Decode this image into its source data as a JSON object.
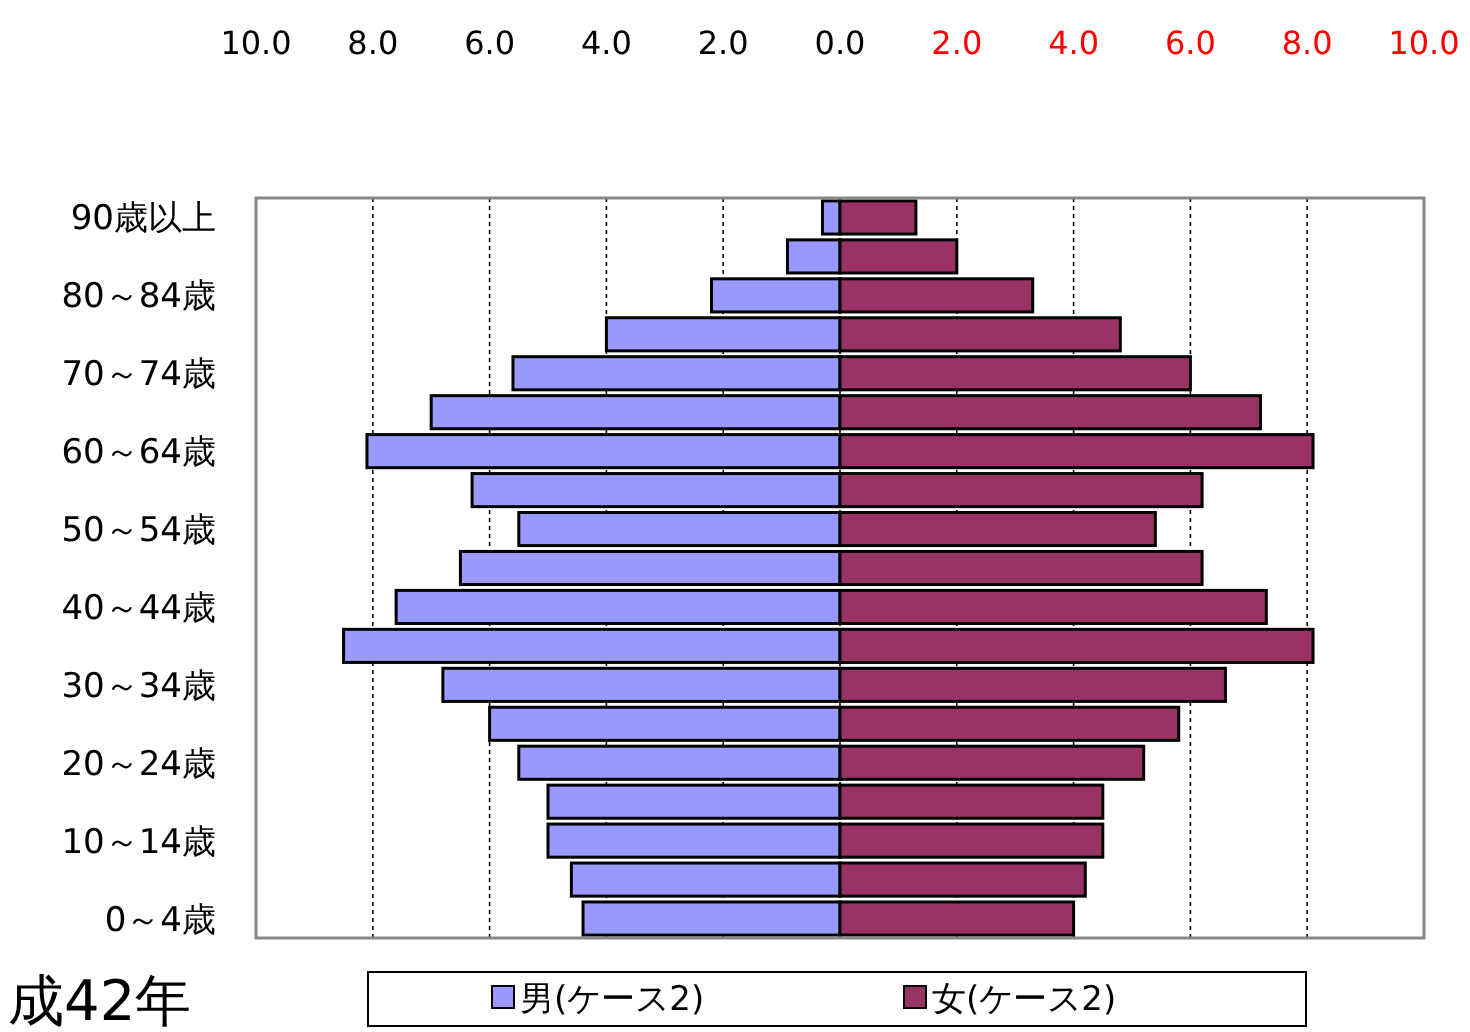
{
  "chart_data": {
    "type": "bar",
    "orientation": "horizontal",
    "categories": [
      "90歳以上",
      null,
      "80～84歳",
      null,
      "70～74歳",
      null,
      "60～64歳",
      null,
      "50～54歳",
      null,
      "40～44歳",
      null,
      "30～34歳",
      null,
      "20～24歳",
      null,
      "10～14歳",
      null,
      "0～4歳"
    ],
    "series": [
      {
        "name": "男(ケース2)",
        "color": "#9999ff",
        "values": [
          -0.3,
          -0.9,
          -2.2,
          -4.0,
          -5.6,
          -7.0,
          -8.1,
          -6.3,
          -5.5,
          -6.5,
          -7.6,
          -8.5,
          -6.8,
          -6.0,
          -5.5,
          -5.0,
          -5.0,
          -4.6,
          -4.4
        ]
      },
      {
        "name": "女(ケース2)",
        "color": "#993366",
        "values": [
          1.3,
          2.0,
          3.3,
          4.8,
          6.0,
          7.2,
          8.1,
          6.2,
          5.4,
          6.2,
          7.3,
          8.1,
          6.6,
          5.8,
          5.2,
          4.5,
          4.5,
          4.2,
          4.0
        ]
      }
    ],
    "xlim": [
      -10,
      10
    ],
    "xticks": [
      {
        "value": -10,
        "label": "10.0"
      },
      {
        "value": -8,
        "label": "8.0"
      },
      {
        "value": -6,
        "label": "6.0"
      },
      {
        "value": -4,
        "label": "4.0"
      },
      {
        "value": -2,
        "label": "2.0"
      },
      {
        "value": 0,
        "label": "0.0"
      },
      {
        "value": 2,
        "label": "2.0"
      },
      {
        "value": 4,
        "label": "4.0"
      },
      {
        "value": 6,
        "label": "6.0"
      },
      {
        "value": 8,
        "label": "8.0"
      },
      {
        "value": 10,
        "label": "10.0"
      }
    ],
    "grid": "x",
    "legend": "bottom",
    "stacked": true,
    "annotations": [
      "成42年"
    ]
  }
}
